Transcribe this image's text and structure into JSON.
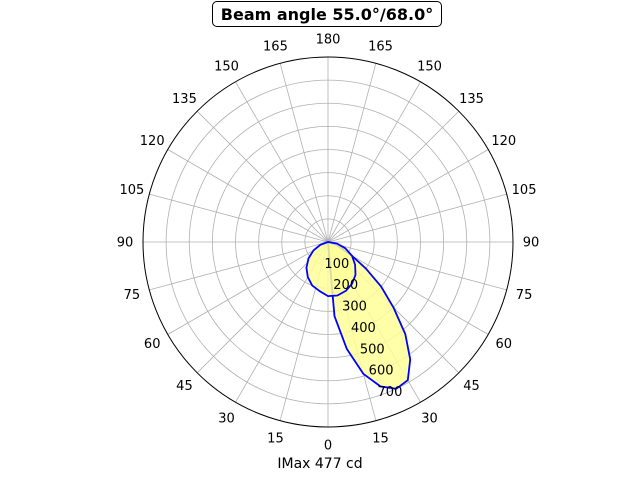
{
  "chart_data": {
    "type": "polar-line",
    "title": "Beam angle 55.0°/68.0°",
    "xlabel": "IMax 477 cd",
    "angle_tick_labels": [
      "0",
      "15",
      "30",
      "45",
      "60",
      "75",
      "90",
      "105",
      "120",
      "135",
      "150",
      "165",
      "180",
      "165",
      "150",
      "135",
      "120",
      "105",
      "90",
      "75",
      "60",
      "45",
      "30",
      "15"
    ],
    "radial_tick_labels": [
      "100",
      "200",
      "300",
      "400",
      "500",
      "600",
      "700"
    ],
    "r_max": 800,
    "grid": true,
    "series": [
      {
        "color": "#0000ff",
        "fill": "#ffff99",
        "points": [
          {
            "angle_deg": 0,
            "r": 0
          },
          {
            "angle_deg": 5,
            "r": 322
          },
          {
            "angle_deg": 10,
            "r": 470
          },
          {
            "angle_deg": 15,
            "r": 590
          },
          {
            "angle_deg": 20,
            "r": 665
          },
          {
            "angle_deg": 25,
            "r": 700
          },
          {
            "angle_deg": 30,
            "r": 690
          },
          {
            "angle_deg": 35,
            "r": 620
          },
          {
            "angle_deg": 40,
            "r": 520
          },
          {
            "angle_deg": 45,
            "r": 400
          },
          {
            "angle_deg": 50,
            "r": 300
          },
          {
            "angle_deg": 55,
            "r": 200
          },
          {
            "angle_deg": 60,
            "r": 120
          },
          {
            "angle_deg": 70,
            "r": 40
          },
          {
            "angle_deg": 80,
            "r": 0
          }
        ]
      },
      {
        "color": "#0000ff",
        "fill": "#ffff99",
        "points": [
          {
            "angle_deg": 0,
            "r": 234
          },
          {
            "angle_deg": 10,
            "r": 235
          },
          {
            "angle_deg": 20,
            "r": 225
          },
          {
            "angle_deg": 30,
            "r": 208
          },
          {
            "angle_deg": 40,
            "r": 185
          },
          {
            "angle_deg": 50,
            "r": 153
          },
          {
            "angle_deg": 60,
            "r": 120
          },
          {
            "angle_deg": 70,
            "r": 80
          },
          {
            "angle_deg": 80,
            "r": 40
          },
          {
            "angle_deg": 90,
            "r": 0
          },
          {
            "angle_deg": -10,
            "r": 215
          },
          {
            "angle_deg": -20,
            "r": 200
          },
          {
            "angle_deg": -30,
            "r": 175
          },
          {
            "angle_deg": -40,
            "r": 145
          },
          {
            "angle_deg": -50,
            "r": 110
          },
          {
            "angle_deg": -60,
            "r": 72
          },
          {
            "angle_deg": -70,
            "r": 35
          },
          {
            "angle_deg": -80,
            "r": 0
          }
        ]
      }
    ]
  }
}
